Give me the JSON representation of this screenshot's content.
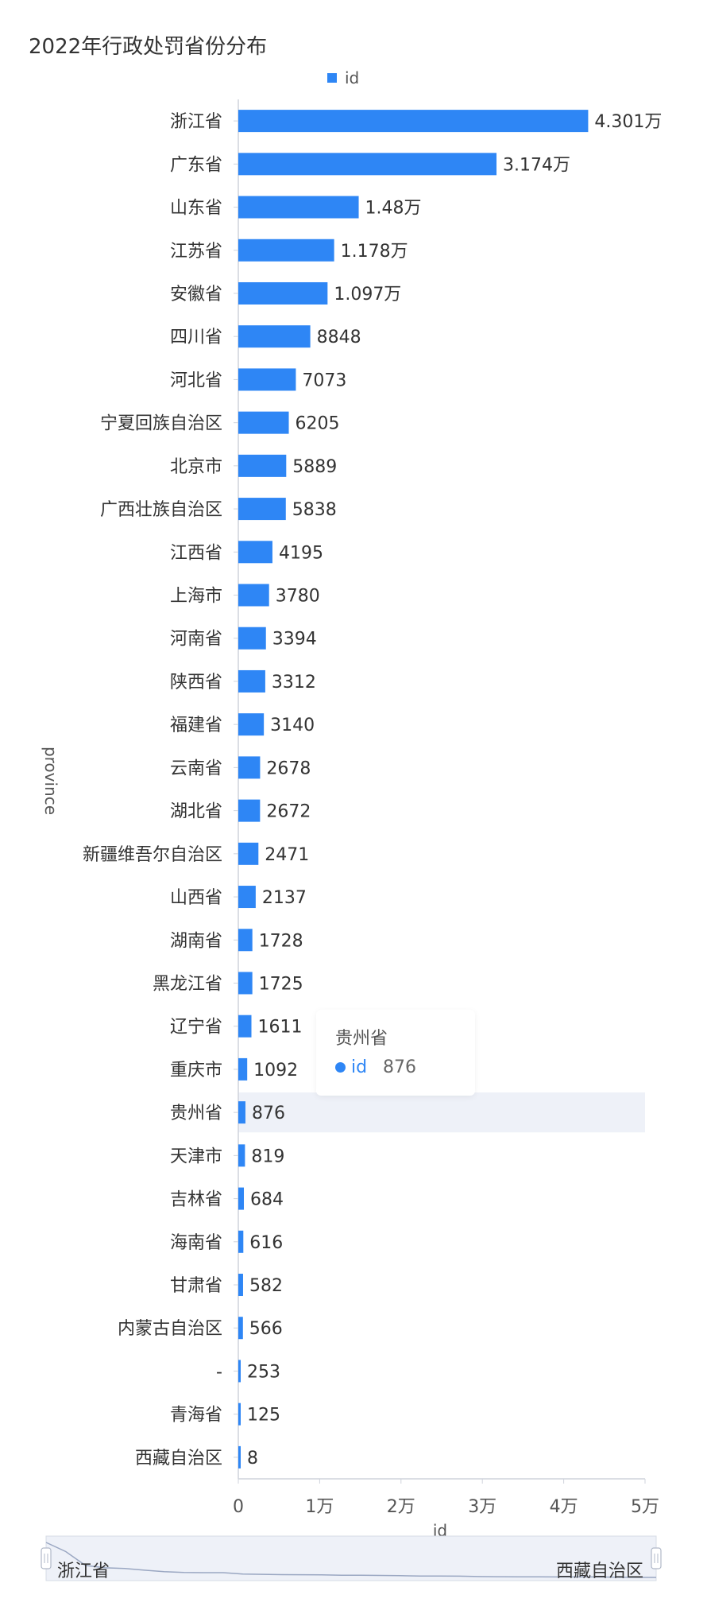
{
  "chart_data": {
    "type": "bar",
    "orientation": "horizontal",
    "title": "2022年行政处罚省份分布",
    "xlabel": "id",
    "ylabel": "province",
    "xlim": [
      0,
      50000
    ],
    "legend_position": "top",
    "grid": false,
    "x_ticks": [
      "0",
      "1万",
      "2万",
      "3万",
      "4万",
      "5万"
    ],
    "categories": [
      "浙江省",
      "广东省",
      "山东省",
      "江苏省",
      "安徽省",
      "四川省",
      "河北省",
      "宁夏回族自治区",
      "北京市",
      "广西壮族自治区",
      "江西省",
      "上海市",
      "河南省",
      "陕西省",
      "福建省",
      "云南省",
      "湖北省",
      "新疆维吾尔自治区",
      "山西省",
      "湖南省",
      "黑龙江省",
      "辽宁省",
      "重庆市",
      "贵州省",
      "天津市",
      "吉林省",
      "海南省",
      "甘肃省",
      "内蒙古自治区",
      "-",
      "青海省",
      "西藏自治区"
    ],
    "series": [
      {
        "name": "id",
        "color": "#2e86f5",
        "values": [
          43010,
          31740,
          14800,
          11780,
          10970,
          8848,
          7073,
          6205,
          5889,
          5838,
          4195,
          3780,
          3394,
          3312,
          3140,
          2678,
          2672,
          2471,
          2137,
          1728,
          1725,
          1611,
          1092,
          876,
          819,
          684,
          616,
          582,
          566,
          253,
          125,
          8
        ],
        "labels": [
          "4.301万",
          "3.174万",
          "1.48万",
          "1.178万",
          "1.097万",
          "8848",
          "7073",
          "6205",
          "5889",
          "5838",
          "4195",
          "3780",
          "3394",
          "3312",
          "3140",
          "2678",
          "2672",
          "2471",
          "2137",
          "1728",
          "1725",
          "1611",
          "1092",
          "876",
          "819",
          "684",
          "616",
          "582",
          "566",
          "253",
          "125",
          "8"
        ]
      }
    ],
    "highlighted_category": "贵州省"
  },
  "legend": {
    "label": "id",
    "color": "#2e86f5"
  },
  "tooltip": {
    "title": "贵州省",
    "series_name": "id",
    "value": "876"
  },
  "data_zoom": {
    "start_label": "浙江省",
    "end_label": "西藏自治区"
  }
}
